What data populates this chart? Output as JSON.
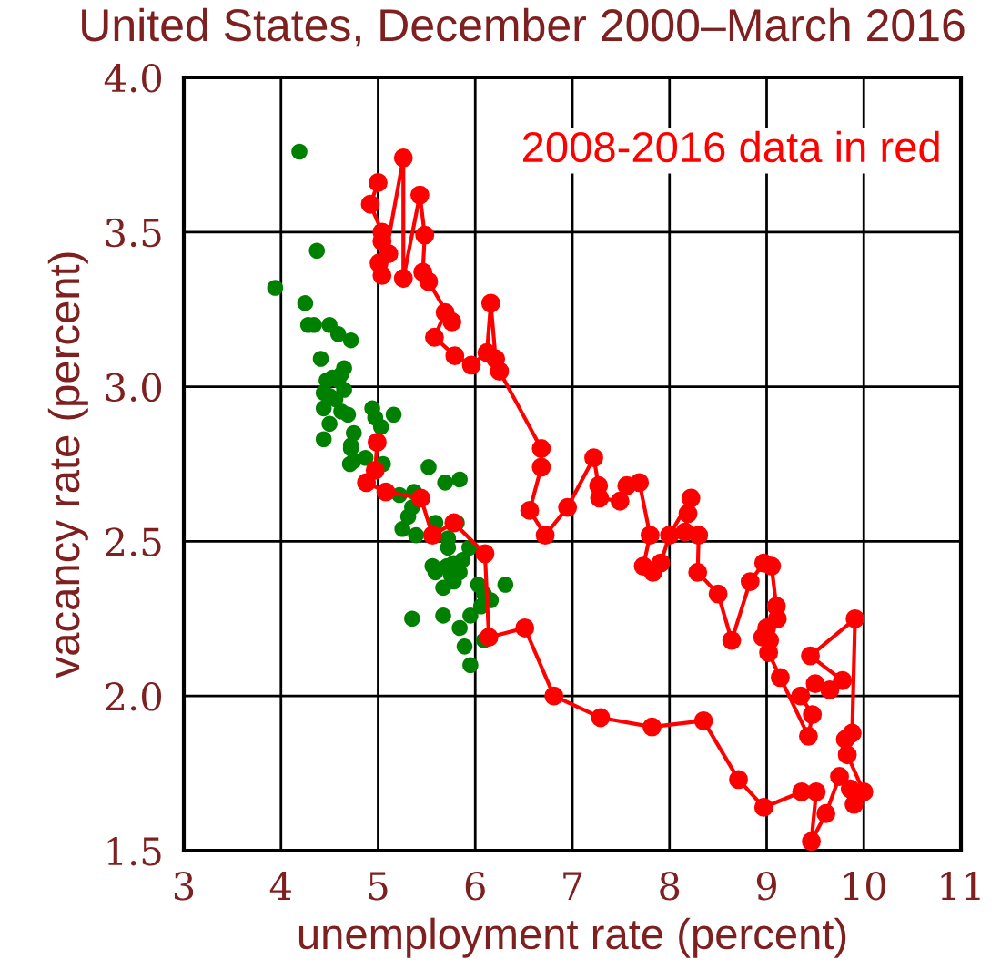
{
  "chart_data": {
    "type": "scatter",
    "title": "United States, December 2000–March 2016",
    "xlabel": "unemployment rate (percent)",
    "ylabel": "vacancy rate (percent)",
    "xlim": [
      3,
      11
    ],
    "xticks": [
      3,
      4,
      5,
      6,
      7,
      8,
      9,
      10,
      11
    ],
    "ylim": [
      1.5,
      4.0
    ],
    "yticks": [
      {
        "value": 1.5,
        "label": "1.5"
      },
      {
        "value": 2.0,
        "label": "2.0"
      },
      {
        "value": 2.5,
        "label": "2.5"
      },
      {
        "value": 3.0,
        "label": "3.0"
      },
      {
        "value": 3.5,
        "label": "3.5"
      },
      {
        "value": 4.0,
        "label": "4.0"
      }
    ],
    "grid": true,
    "marker": "circle",
    "legend": false,
    "annotations": [
      "2008-2016 data in red"
    ],
    "series": [
      {
        "color": "#008000",
        "x": [
          4.19,
          4.37,
          3.94,
          4.25,
          4.28,
          4.34,
          4.5,
          4.59,
          4.72,
          4.41,
          4.65,
          4.62,
          4.59,
          4.53,
          4.47,
          4.44,
          4.5,
          4.65,
          4.56,
          4.44,
          4.62,
          4.69,
          4.5,
          4.75,
          4.44,
          4.72,
          4.94,
          4.97,
          5.16,
          5.03,
          4.75,
          4.87,
          4.72,
          4.71,
          5.05,
          5.52,
          5.69,
          5.84,
          5.22,
          5.37,
          5.35,
          5.31,
          5.25,
          5.39,
          5.59,
          5.81,
          5.72,
          5.72,
          5.94,
          5.56,
          5.59,
          5.71,
          5.78,
          5.87,
          5.84,
          5.75,
          5.67,
          5.78,
          6.03,
          6.31,
          6.09,
          6.16,
          6.06,
          5.35,
          5.67,
          5.95,
          5.84,
          5.89,
          5.95,
          6.09
        ],
        "values": [
          3.76,
          3.44,
          3.32,
          3.27,
          3.2,
          3.2,
          3.2,
          3.17,
          3.15,
          3.09,
          3.06,
          3.04,
          3.02,
          3.03,
          3.02,
          2.98,
          2.97,
          2.99,
          2.96,
          2.93,
          2.92,
          2.91,
          2.88,
          2.85,
          2.83,
          2.81,
          2.93,
          2.9,
          2.91,
          2.87,
          2.76,
          2.77,
          2.8,
          2.75,
          2.75,
          2.74,
          2.69,
          2.7,
          2.65,
          2.66,
          2.61,
          2.58,
          2.54,
          2.52,
          2.56,
          2.56,
          2.51,
          2.48,
          2.48,
          2.42,
          2.4,
          2.42,
          2.43,
          2.44,
          2.4,
          2.39,
          2.35,
          2.37,
          2.36,
          2.36,
          2.33,
          2.31,
          2.29,
          2.25,
          2.26,
          2.26,
          2.22,
          2.16,
          2.1,
          2.18
        ]
      },
      {
        "type": "line",
        "color": "#ff0000",
        "x": [
          4.99,
          4.97,
          4.88,
          5.08,
          5.44,
          5.56,
          5.78,
          6.1,
          6.14,
          6.51,
          6.81,
          7.29,
          7.82,
          8.35,
          8.71,
          8.97,
          9.36,
          9.51,
          9.46,
          9.61,
          9.75,
          9.86,
          9.9,
          10.0,
          9.83,
          9.81,
          9.88,
          9.91,
          9.45,
          9.78,
          9.65,
          9.5,
          9.35,
          9.47,
          9.43,
          9.14,
          9.02,
          9.03,
          8.96,
          9.0,
          9.11,
          9.1,
          9.05,
          8.97,
          8.83,
          8.64,
          8.5,
          8.29,
          8.3,
          8.16,
          8.19,
          8.22,
          8.0,
          7.91,
          7.83,
          7.73,
          7.8,
          7.69,
          7.56,
          7.49,
          7.28,
          7.27,
          7.22,
          6.95,
          6.72,
          6.56,
          6.68,
          6.68,
          6.25,
          6.21,
          6.16,
          6.12,
          5.96,
          5.79,
          5.58,
          5.69,
          5.76,
          5.52,
          5.46,
          5.48,
          5.43,
          5.26,
          5.26,
          5.04,
          5.01,
          5.11,
          5.04,
          5.04,
          4.92,
          5.0
        ],
        "values": [
          2.82,
          2.73,
          2.69,
          2.66,
          2.64,
          2.52,
          2.56,
          2.46,
          2.19,
          2.22,
          2.0,
          1.93,
          1.9,
          1.92,
          1.73,
          1.64,
          1.69,
          1.69,
          1.53,
          1.62,
          1.74,
          1.7,
          1.65,
          1.69,
          1.81,
          1.86,
          1.88,
          2.25,
          2.13,
          2.05,
          2.02,
          2.04,
          2.0,
          1.94,
          1.87,
          2.06,
          2.14,
          2.18,
          2.19,
          2.22,
          2.25,
          2.29,
          2.42,
          2.43,
          2.37,
          2.18,
          2.33,
          2.4,
          2.52,
          2.53,
          2.59,
          2.64,
          2.52,
          2.43,
          2.4,
          2.42,
          2.52,
          2.69,
          2.68,
          2.63,
          2.64,
          2.68,
          2.77,
          2.61,
          2.52,
          2.6,
          2.74,
          2.8,
          3.05,
          3.09,
          3.27,
          3.11,
          3.07,
          3.1,
          3.16,
          3.24,
          3.21,
          3.34,
          3.37,
          3.49,
          3.62,
          3.35,
          3.74,
          3.36,
          3.4,
          3.43,
          3.47,
          3.5,
          3.59,
          3.66
        ]
      }
    ]
  }
}
